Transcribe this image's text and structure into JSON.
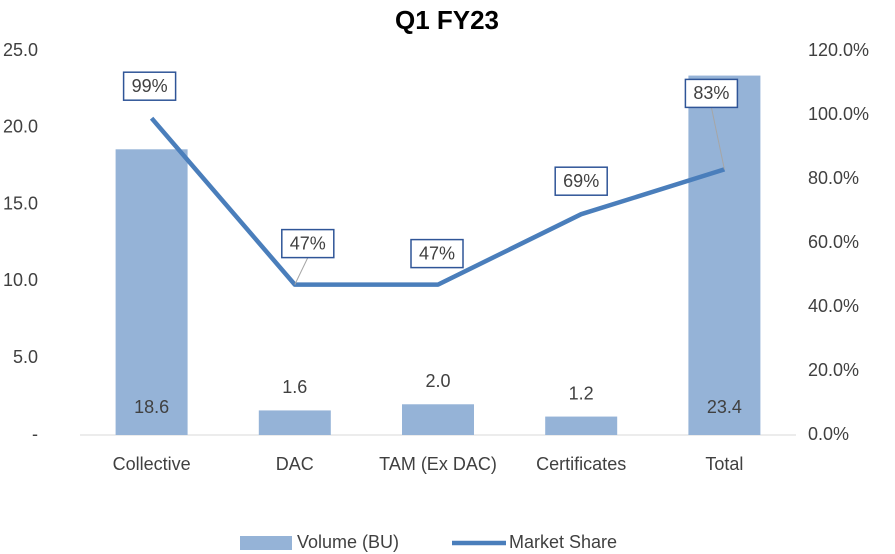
{
  "chart_data": {
    "type": "bar-line",
    "title": "Q1 FY23",
    "categories": [
      "Collective",
      "DAC",
      "TAM (Ex DAC)",
      "Certificates",
      "Total"
    ],
    "series": [
      {
        "name": "Volume (BU)",
        "type": "bar",
        "color": "#95b3d7",
        "values": [
          18.6,
          1.6,
          2.0,
          1.2,
          23.4
        ],
        "value_labels": [
          "18.6",
          "1.6",
          "2.0",
          "1.2",
          "23.4"
        ]
      },
      {
        "name": "Market Share",
        "type": "line",
        "axis": "y2",
        "color": "#4a7ebb",
        "values": [
          99,
          47,
          47,
          69,
          83
        ],
        "value_labels": [
          "99%",
          "47%",
          "47%",
          "69%",
          "83%"
        ]
      }
    ],
    "ylim": [
      0,
      25
    ],
    "yticks": [
      {
        "value": 0,
        "label": "-"
      },
      {
        "value": 5,
        "label": "5.0"
      },
      {
        "value": 10,
        "label": "10.0"
      },
      {
        "value": 15,
        "label": "15.0"
      },
      {
        "value": 20,
        "label": "20.0"
      },
      {
        "value": 25,
        "label": "25.0"
      }
    ],
    "y2lim": [
      0,
      120
    ],
    "y2ticks": [
      {
        "value": 0,
        "label": "0.0%"
      },
      {
        "value": 20,
        "label": "20.0%"
      },
      {
        "value": 40,
        "label": "40.0%"
      },
      {
        "value": 60,
        "label": "60.0%"
      },
      {
        "value": 80,
        "label": "80.0%"
      },
      {
        "value": 100,
        "label": "100.0%"
      },
      {
        "value": 120,
        "label": "120.0%"
      }
    ],
    "legend": "bottom"
  }
}
